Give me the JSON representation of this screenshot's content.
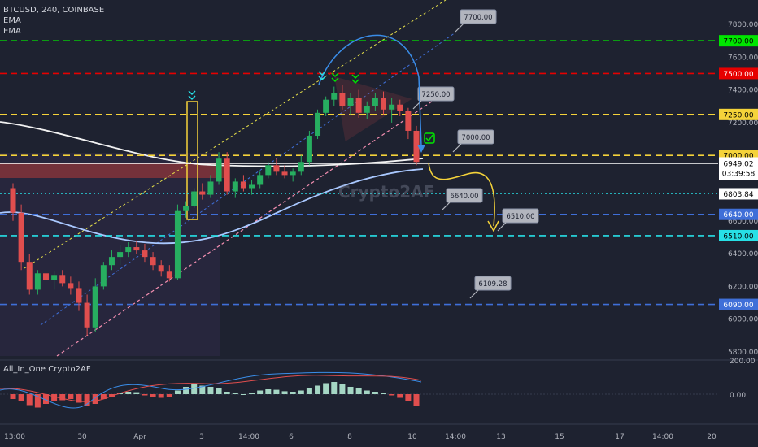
{
  "header": {
    "symbol_line": "BTCUSD, 240, COINBASE",
    "ema1": "EMA",
    "ema2": "EMA"
  },
  "watermark": "Crypto2AF",
  "indicator": {
    "title": "All_In_One Crypto2AF",
    "axis_labels": [
      "200.00",
      "0.00"
    ]
  },
  "colors": {
    "background": "#1e2230",
    "up_candle": "#27ae60",
    "down_candle": "#e04e4e",
    "green_level": "#00e600",
    "red_level": "#e60000",
    "yellow_level": "#f5d33a",
    "blue_level": "#3f6fd8",
    "cyan_level": "#27e0e6",
    "price_tag": "#ffffff"
  },
  "price_axis": {
    "ticks": [
      "7800.00",
      "7600.00",
      "7400.00",
      "7200.00",
      "6600.00",
      "6400.00",
      "6200.00",
      "6000.00",
      "5800.00"
    ]
  },
  "time_axis": {
    "ticks": [
      "13:00",
      "30",
      "Apr",
      "3",
      "14:00",
      "6",
      "8",
      "10",
      "14:00",
      "13",
      "15",
      "17",
      "14:00",
      "20"
    ]
  },
  "chart_data": {
    "type": "candlestick",
    "title": "BTCUSD, 240, COINBASE",
    "xlabel": "",
    "ylabel": "",
    "ylim": [
      5750,
      7950
    ],
    "levels": [
      {
        "value": 7700,
        "label": "7700.00",
        "color": "#00e600"
      },
      {
        "value": 7500,
        "label": "7500.00",
        "color": "#e60000"
      },
      {
        "value": 7250,
        "label": "7250.00",
        "color": "#f5d33a"
      },
      {
        "value": 7000,
        "label": "7000.00",
        "color": "#f5d33a"
      },
      {
        "value": 6640,
        "label": "6640.00",
        "color": "#3f6fd8"
      },
      {
        "value": 6510,
        "label": "6510.00",
        "color": "#27e0e6"
      },
      {
        "value": 6090,
        "label": "6090.00",
        "color": "#3f6fd8"
      }
    ],
    "last_price": {
      "value": 6949.02,
      "label": "6949.02",
      "countdown": "03:39:58"
    },
    "ema_value_label": {
      "value": 6803.84,
      "label": "6803.84"
    },
    "callouts": [
      {
        "text": "7700.00",
        "price": 7700
      },
      {
        "text": "7250.00",
        "price": 7250
      },
      {
        "text": "7000.00",
        "price": 7000
      },
      {
        "text": "6640.00",
        "price": 6640
      },
      {
        "text": "6510.00",
        "price": 6510
      },
      {
        "text": "6109.28",
        "price": 6090
      }
    ],
    "candles": [
      [
        6800,
        6830,
        6600,
        6650
      ],
      [
        6650,
        6700,
        6300,
        6350
      ],
      [
        6350,
        6400,
        6150,
        6180
      ],
      [
        6180,
        6300,
        6150,
        6280
      ],
      [
        6280,
        6320,
        6200,
        6240
      ],
      [
        6240,
        6290,
        6180,
        6270
      ],
      [
        6270,
        6300,
        6200,
        6220
      ],
      [
        6220,
        6260,
        6150,
        6190
      ],
      [
        6190,
        6230,
        6050,
        6100
      ],
      [
        6100,
        6150,
        5900,
        5950
      ],
      [
        5950,
        6250,
        5920,
        6200
      ],
      [
        6200,
        6350,
        6180,
        6330
      ],
      [
        6330,
        6420,
        6300,
        6380
      ],
      [
        6380,
        6450,
        6330,
        6410
      ],
      [
        6410,
        6470,
        6380,
        6440
      ],
      [
        6440,
        6480,
        6400,
        6420
      ],
      [
        6420,
        6460,
        6350,
        6380
      ],
      [
        6380,
        6410,
        6300,
        6330
      ],
      [
        6330,
        6360,
        6260,
        6290
      ],
      [
        6290,
        6330,
        6230,
        6250
      ],
      [
        6250,
        6700,
        6240,
        6660
      ],
      [
        6660,
        6720,
        6620,
        6690
      ],
      [
        6690,
        6800,
        6680,
        6780
      ],
      [
        6780,
        6830,
        6730,
        6760
      ],
      [
        6760,
        6880,
        6740,
        6840
      ],
      [
        6840,
        7020,
        6820,
        6980
      ],
      [
        6980,
        7020,
        6760,
        6780
      ],
      [
        6780,
        6860,
        6740,
        6840
      ],
      [
        6840,
        6880,
        6780,
        6800
      ],
      [
        6800,
        6850,
        6760,
        6820
      ],
      [
        6820,
        6900,
        6800,
        6880
      ],
      [
        6880,
        6960,
        6860,
        6940
      ],
      [
        6940,
        6980,
        6880,
        6900
      ],
      [
        6900,
        6940,
        6860,
        6880
      ],
      [
        6880,
        6920,
        6840,
        6900
      ],
      [
        6900,
        7000,
        6880,
        6960
      ],
      [
        6960,
        7150,
        6940,
        7120
      ],
      [
        7120,
        7280,
        7100,
        7260
      ],
      [
        7260,
        7360,
        7240,
        7340
      ],
      [
        7340,
        7420,
        7300,
        7380
      ],
      [
        7380,
        7430,
        7280,
        7300
      ],
      [
        7300,
        7380,
        7250,
        7350
      ],
      [
        7350,
        7400,
        7230,
        7260
      ],
      [
        7260,
        7330,
        7220,
        7300
      ],
      [
        7300,
        7380,
        7270,
        7350
      ],
      [
        7350,
        7390,
        7250,
        7280
      ],
      [
        7280,
        7350,
        7200,
        7310
      ],
      [
        7310,
        7340,
        7240,
        7270
      ],
      [
        7270,
        7290,
        7100,
        7150
      ],
      [
        7150,
        7180,
        6940,
        6960
      ]
    ],
    "macd_histogram": [
      -20,
      -30,
      -45,
      -55,
      -40,
      -30,
      -25,
      -20,
      -35,
      -50,
      -40,
      -20,
      -10,
      5,
      10,
      8,
      -5,
      -10,
      -15,
      -12,
      15,
      30,
      40,
      35,
      30,
      25,
      10,
      5,
      0,
      5,
      15,
      20,
      18,
      12,
      10,
      15,
      25,
      35,
      45,
      50,
      40,
      30,
      25,
      15,
      10,
      5,
      -5,
      -15,
      -30,
      -50
    ]
  }
}
